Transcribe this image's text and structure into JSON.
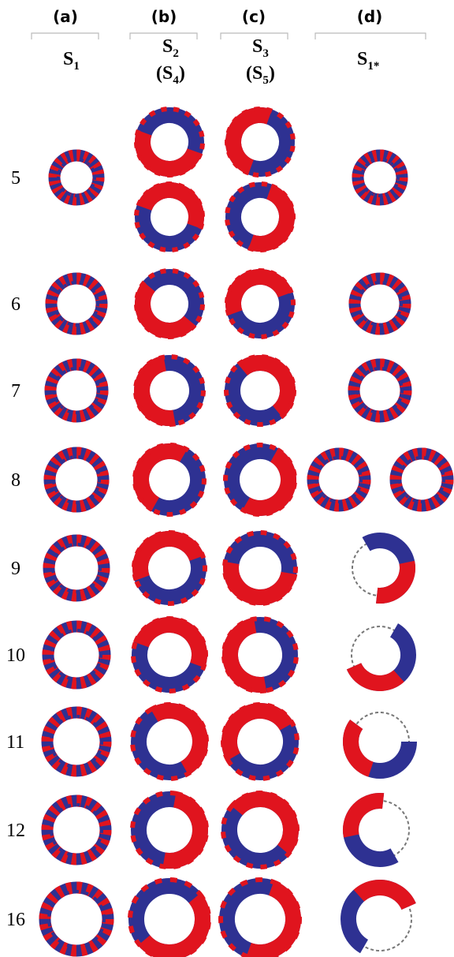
{
  "header": {
    "columns": [
      {
        "letter": "(a)",
        "state": {
          "symbol": "S",
          "sub": "1"
        }
      },
      {
        "letter": "(b)",
        "state": {
          "symbol": "S",
          "sub": "2"
        },
        "alt": {
          "open": "(S",
          "sub": "4",
          "close": ")"
        }
      },
      {
        "letter": "(c)",
        "state": {
          "symbol": "S",
          "sub": "3"
        },
        "alt": {
          "open": "(S",
          "sub": "5",
          "close": ")"
        }
      },
      {
        "letter": "(d)",
        "state": {
          "symbol": "S",
          "sub": "1*"
        }
      }
    ]
  },
  "rows": [
    "5",
    "6",
    "7",
    "8",
    "9",
    "10",
    "11",
    "12",
    "16"
  ]
}
